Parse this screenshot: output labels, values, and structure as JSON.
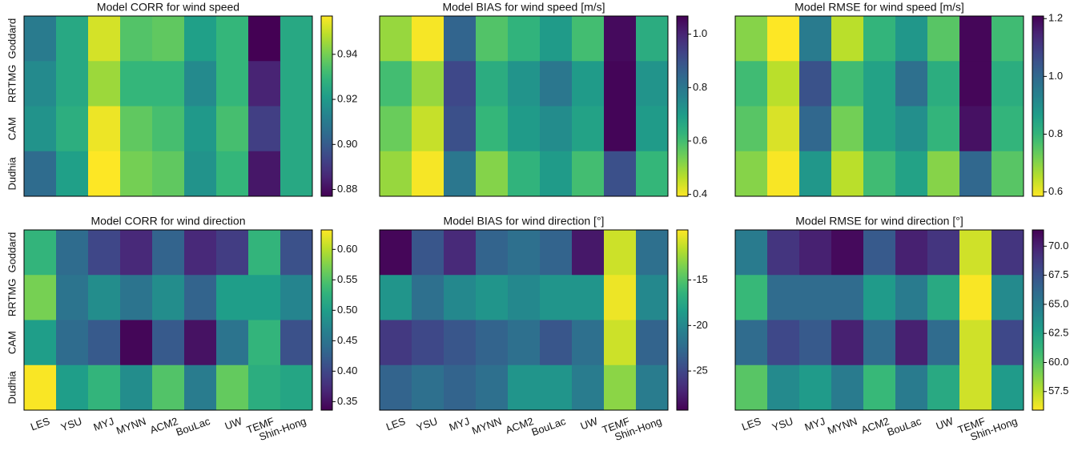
{
  "chart_data": [
    {
      "type": "heatmap",
      "title": "Model CORR for wind speed",
      "colormap": "viridis",
      "row_labels": [
        "Goddard",
        "RRTMG",
        "CAM",
        "Dudhia"
      ],
      "values": [
        [
          0.91,
          0.925,
          0.952,
          0.935,
          0.937,
          0.922,
          0.93,
          0.877,
          0.925
        ],
        [
          0.915,
          0.925,
          0.945,
          0.93,
          0.93,
          0.915,
          0.93,
          0.885,
          0.925
        ],
        [
          0.918,
          0.927,
          0.955,
          0.937,
          0.933,
          0.92,
          0.933,
          0.892,
          0.925
        ],
        [
          0.905,
          0.922,
          0.957,
          0.94,
          0.937,
          0.918,
          0.93,
          0.882,
          0.925
        ]
      ],
      "clim": [
        0.877,
        0.957
      ],
      "cticks": [
        0.88,
        {
          "value": 0.9,
          "label": "0.90"
        },
        0.92,
        0.94
      ]
    },
    {
      "type": "heatmap",
      "title": "Model BIAS for wind speed [m/s]",
      "colormap": "viridis_r",
      "values": [
        [
          0.5,
          0.4,
          0.85,
          0.58,
          0.63,
          0.7,
          0.6,
          1.05,
          0.65
        ],
        [
          0.6,
          0.5,
          0.92,
          0.65,
          0.72,
          0.8,
          0.7,
          1.06,
          0.72
        ],
        [
          0.55,
          0.45,
          0.9,
          0.62,
          0.7,
          0.74,
          0.68,
          1.06,
          0.7
        ],
        [
          0.5,
          0.4,
          0.8,
          0.52,
          0.63,
          0.7,
          0.6,
          0.9,
          0.62
        ]
      ],
      "clim": [
        0.393,
        1.068
      ],
      "cticks": [
        0.4,
        0.6,
        0.8,
        {
          "value": 1.0,
          "label": "1.0"
        }
      ]
    },
    {
      "type": "heatmap",
      "title": "Model RMSE for wind speed [m/s]",
      "colormap": "viridis_r",
      "values": [
        [
          0.7,
          0.58,
          0.95,
          0.65,
          0.8,
          0.88,
          0.75,
          1.2,
          0.78
        ],
        [
          0.78,
          0.65,
          1.05,
          0.78,
          0.85,
          0.98,
          0.82,
          1.2,
          0.82
        ],
        [
          0.75,
          0.62,
          1.0,
          0.72,
          0.85,
          0.9,
          0.8,
          1.18,
          0.8
        ],
        [
          0.7,
          0.59,
          0.88,
          0.65,
          0.78,
          0.85,
          0.7,
          1.0,
          0.75
        ]
      ],
      "clim": [
        0.585,
        1.209
      ],
      "cticks": [
        0.6,
        0.8,
        {
          "value": 1.0,
          "label": "1.0"
        },
        1.2
      ]
    },
    {
      "type": "heatmap",
      "title": "Model CORR for wind direction",
      "colormap": "viridis",
      "row_labels": [
        "Goddard",
        "RRTMG",
        "CAM",
        "Dudhia"
      ],
      "categories": [
        "LES",
        "YSU",
        "MYJ",
        "MYNN",
        "ACM2",
        "BouLac",
        "UW",
        "TEMF",
        "Shin-Hong"
      ],
      "values": [
        [
          0.53,
          0.44,
          0.4,
          0.37,
          0.43,
          0.37,
          0.39,
          0.53,
          0.41
        ],
        [
          0.57,
          0.45,
          0.48,
          0.45,
          0.48,
          0.43,
          0.5,
          0.5,
          0.47
        ],
        [
          0.5,
          0.44,
          0.42,
          0.34,
          0.42,
          0.35,
          0.45,
          0.53,
          0.41
        ],
        [
          0.63,
          0.5,
          0.53,
          0.48,
          0.55,
          0.46,
          0.56,
          0.52,
          0.51
        ]
      ],
      "clim": [
        0.336,
        0.632
      ],
      "cticks": [
        0.35,
        {
          "value": 0.4,
          "label": "0.40"
        },
        0.45,
        {
          "value": 0.5,
          "label": "0.50"
        },
        0.55,
        {
          "value": 0.6,
          "label": "0.60"
        }
      ]
    },
    {
      "type": "heatmap",
      "title": "Model BIAS for wind direction [$^\\circ$]",
      "colormap": "viridis",
      "categories": [
        "LES",
        "YSU",
        "MYJ",
        "MYNN",
        "ACM2",
        "BouLac",
        "UW",
        "TEMF",
        "Shin-Hong"
      ],
      "values": [
        [
          -29,
          -24,
          -27,
          -23,
          -22,
          -23,
          -28,
          -11,
          -22
        ],
        [
          -19,
          -22,
          -20,
          -19,
          -20,
          -19,
          -19,
          -10,
          -20
        ],
        [
          -26,
          -25,
          -24,
          -23,
          -22,
          -24,
          -22,
          -11,
          -23
        ],
        [
          -23,
          -22,
          -23,
          -22,
          -19,
          -19,
          -21,
          -13,
          -21
        ]
      ],
      "clim": [
        -29.3,
        -9.5
      ],
      "cticks": [
        -25,
        -20,
        -15
      ]
    },
    {
      "type": "heatmap",
      "title": "Model RMSE for wind direction [$^\\circ$]",
      "colormap": "viridis_r",
      "categories": [
        "LES",
        "YSU",
        "MYJ",
        "MYNN",
        "ACM2",
        "BouLac",
        "UW",
        "TEMF",
        "Shin-Hong"
      ],
      "values": [
        [
          65,
          69,
          70,
          71,
          67,
          70,
          69,
          57,
          69
        ],
        [
          61,
          66,
          66,
          66,
          63,
          65,
          62,
          56,
          64
        ],
        [
          66,
          68,
          67,
          70,
          66,
          70,
          66,
          57,
          68
        ],
        [
          60,
          64,
          63,
          65,
          61,
          65,
          62,
          57,
          63
        ]
      ],
      "clim": [
        55.9,
        71.4
      ],
      "cticks": [
        57.5,
        {
          "value": 60,
          "label": "60.0"
        },
        62.5,
        {
          "value": 65,
          "label": "65.0"
        },
        67.5,
        {
          "value": 70,
          "label": "70.0"
        }
      ]
    }
  ]
}
